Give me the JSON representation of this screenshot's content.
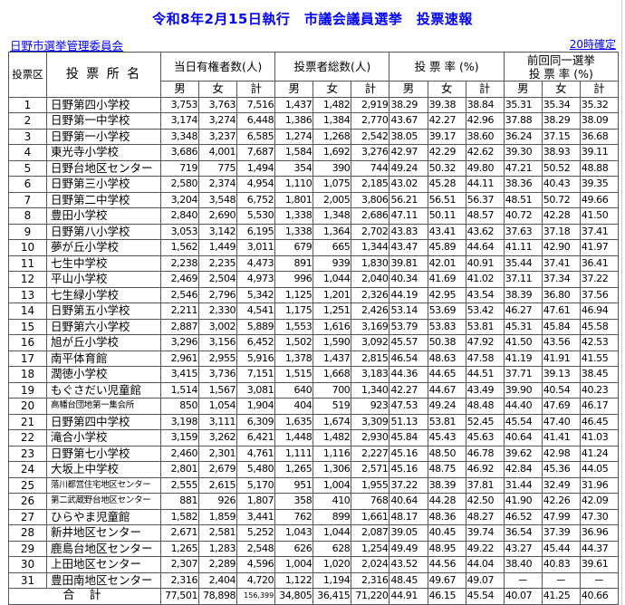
{
  "title": "令和8年2月15日執行　市議会議員選挙　投票速報",
  "org": "日野市選挙管理委員会",
  "status_time": "20時確定",
  "headers": {
    "district": "投票区",
    "place": "投 票 所 名",
    "eligible": "当日有権者数(人)",
    "voters": "投票者総数(人)",
    "rate": "投 票 率 (%)",
    "prev_rate_line1": "前回同一選挙",
    "prev_rate_line2": "投 票 率 (%)",
    "male": "男",
    "female": "女",
    "total": "計"
  },
  "rows": [
    [
      "1",
      "日野第四小学校",
      "3,753",
      "3,763",
      "7,516",
      "1,437",
      "1,482",
      "2,919",
      "38.29",
      "39.38",
      "38.84",
      "35.31",
      "35.34",
      "35.32"
    ],
    [
      "2",
      "日野第一中学校",
      "3,174",
      "3,274",
      "6,448",
      "1,386",
      "1,384",
      "2,770",
      "43.67",
      "42.27",
      "42.96",
      "37.88",
      "38.29",
      "38.09"
    ],
    [
      "3",
      "日野第一小学校",
      "3,348",
      "3,237",
      "6,585",
      "1,274",
      "1,268",
      "2,542",
      "38.05",
      "39.17",
      "38.60",
      "36.24",
      "37.15",
      "36.68"
    ],
    [
      "4",
      "東光寺小学校",
      "3,686",
      "4,001",
      "7,687",
      "1,584",
      "1,692",
      "3,276",
      "42.97",
      "42.29",
      "42.62",
      "39.30",
      "38.93",
      "39.11"
    ],
    [
      "5",
      "日野台地区センター",
      "719",
      "775",
      "1,494",
      "354",
      "390",
      "744",
      "49.24",
      "50.32",
      "49.80",
      "47.21",
      "50.52",
      "48.88"
    ],
    [
      "6",
      "日野第三小学校",
      "2,580",
      "2,374",
      "4,954",
      "1,110",
      "1,075",
      "2,185",
      "43.02",
      "45.28",
      "44.11",
      "38.36",
      "40.43",
      "39.35"
    ],
    [
      "7",
      "日野第二中学校",
      "3,204",
      "3,548",
      "6,752",
      "1,801",
      "2,005",
      "3,806",
      "56.21",
      "56.51",
      "56.37",
      "48.51",
      "50.72",
      "49.66"
    ],
    [
      "8",
      "豊田小学校",
      "2,840",
      "2,690",
      "5,530",
      "1,338",
      "1,348",
      "2,686",
      "47.11",
      "50.11",
      "48.57",
      "40.72",
      "42.28",
      "41.50"
    ],
    [
      "9",
      "日野第八小学校",
      "3,053",
      "3,142",
      "6,195",
      "1,338",
      "1,364",
      "2,702",
      "43.83",
      "43.41",
      "43.62",
      "37.63",
      "37.18",
      "37.41"
    ],
    [
      "10",
      "夢が丘小学校",
      "1,562",
      "1,449",
      "3,011",
      "679",
      "665",
      "1,344",
      "43.47",
      "45.89",
      "44.64",
      "41.11",
      "42.90",
      "41.97"
    ],
    [
      "11",
      "七生中学校",
      "2,238",
      "2,235",
      "4,473",
      "891",
      "939",
      "1,830",
      "39.81",
      "42.01",
      "40.91",
      "35.44",
      "37.41",
      "36.41"
    ],
    [
      "12",
      "平山小学校",
      "2,469",
      "2,504",
      "4,973",
      "996",
      "1,044",
      "2,040",
      "40.34",
      "41.69",
      "41.02",
      "37.11",
      "37.34",
      "37.22"
    ],
    [
      "13",
      "七生緑小学校",
      "2,546",
      "2,796",
      "5,342",
      "1,125",
      "1,201",
      "2,326",
      "44.19",
      "42.95",
      "43.54",
      "38.39",
      "36.80",
      "37.56"
    ],
    [
      "14",
      "日野第五小学校",
      "2,211",
      "2,330",
      "4,541",
      "1,175",
      "1,251",
      "2,426",
      "53.14",
      "53.69",
      "53.42",
      "46.27",
      "47.61",
      "46.94"
    ],
    [
      "15",
      "日野第六小学校",
      "2,887",
      "3,002",
      "5,889",
      "1,553",
      "1,616",
      "3,169",
      "53.79",
      "53.83",
      "53.81",
      "45.31",
      "45.84",
      "45.58"
    ],
    [
      "16",
      "旭が丘小学校",
      "3,296",
      "3,156",
      "6,452",
      "1,502",
      "1,590",
      "3,092",
      "45.57",
      "50.38",
      "47.92",
      "41.50",
      "43.56",
      "42.53"
    ],
    [
      "17",
      "南平体育館",
      "2,961",
      "2,955",
      "5,916",
      "1,378",
      "1,437",
      "2,815",
      "46.54",
      "48.63",
      "47.58",
      "41.19",
      "41.91",
      "41.55"
    ],
    [
      "18",
      "潤徳小学校",
      "3,415",
      "3,736",
      "7,151",
      "1,515",
      "1,668",
      "3,183",
      "44.36",
      "44.65",
      "44.51",
      "37.71",
      "39.13",
      "38.45"
    ],
    [
      "19",
      "もぐさだい児童館",
      "1,514",
      "1,567",
      "3,081",
      "640",
      "700",
      "1,340",
      "42.27",
      "44.67",
      "43.49",
      "39.90",
      "40.54",
      "40.23"
    ],
    [
      "20",
      "高幡台団地第一集会所",
      "850",
      "1,054",
      "1,904",
      "404",
      "519",
      "923",
      "47.53",
      "49.24",
      "48.48",
      "44.40",
      "47.69",
      "46.17"
    ],
    [
      "21",
      "日野第四中学校",
      "3,198",
      "3,111",
      "6,309",
      "1,635",
      "1,674",
      "3,309",
      "51.13",
      "53.81",
      "52.45",
      "45.54",
      "47.40",
      "46.45"
    ],
    [
      "22",
      "滝合小学校",
      "3,159",
      "3,262",
      "6,421",
      "1,448",
      "1,482",
      "2,930",
      "45.84",
      "45.43",
      "45.63",
      "40.64",
      "41.41",
      "41.03"
    ],
    [
      "23",
      "日野第七小学校",
      "2,460",
      "2,301",
      "4,761",
      "1,111",
      "1,116",
      "2,227",
      "45.16",
      "48.50",
      "46.78",
      "39.62",
      "42.98",
      "41.24"
    ],
    [
      "24",
      "大坂上中学校",
      "2,801",
      "2,679",
      "5,480",
      "1,265",
      "1,306",
      "2,571",
      "45.16",
      "48.75",
      "46.92",
      "42.84",
      "45.36",
      "44.05"
    ],
    [
      "25",
      "落川都営住宅地区センター",
      "2,555",
      "2,615",
      "5,170",
      "951",
      "1,004",
      "1,955",
      "37.22",
      "38.39",
      "37.81",
      "31.44",
      "32.49",
      "31.96"
    ],
    [
      "26",
      "第二武蔵野台地区センター",
      "881",
      "926",
      "1,807",
      "358",
      "410",
      "768",
      "40.64",
      "44.28",
      "42.50",
      "41.90",
      "42.26",
      "42.09"
    ],
    [
      "27",
      "ひらやま児童館",
      "1,582",
      "1,859",
      "3,441",
      "762",
      "899",
      "1,661",
      "48.17",
      "48.36",
      "48.27",
      "46.52",
      "47.99",
      "47.30"
    ],
    [
      "28",
      "新井地区センター",
      "2,671",
      "2,581",
      "5,252",
      "1,043",
      "1,044",
      "2,087",
      "39.05",
      "40.45",
      "39.74",
      "36.54",
      "37.39",
      "36.96"
    ],
    [
      "29",
      "鹿島台地区センター",
      "1,265",
      "1,283",
      "2,548",
      "626",
      "628",
      "1,254",
      "49.49",
      "48.95",
      "49.22",
      "43.27",
      "45.44",
      "44.37"
    ],
    [
      "30",
      "上田地区センター",
      "2,307",
      "2,289",
      "4,596",
      "1,004",
      "1,020",
      "2,024",
      "43.52",
      "44.56",
      "44.04",
      "38.40",
      "40.83",
      "39.61"
    ],
    [
      "31",
      "豊田南地区センター",
      "2,316",
      "2,404",
      "4,720",
      "1,122",
      "1,194",
      "2,316",
      "48.45",
      "49.67",
      "49.07",
      "－",
      "－",
      "－"
    ]
  ],
  "total_row": {
    "label": "合 計",
    "values": [
      "77,501",
      "78,898",
      "156,399",
      "34,805",
      "36,415",
      "71,220",
      "44.91",
      "46.15",
      "45.54",
      "40.07",
      "41.25",
      "40.66"
    ]
  }
}
